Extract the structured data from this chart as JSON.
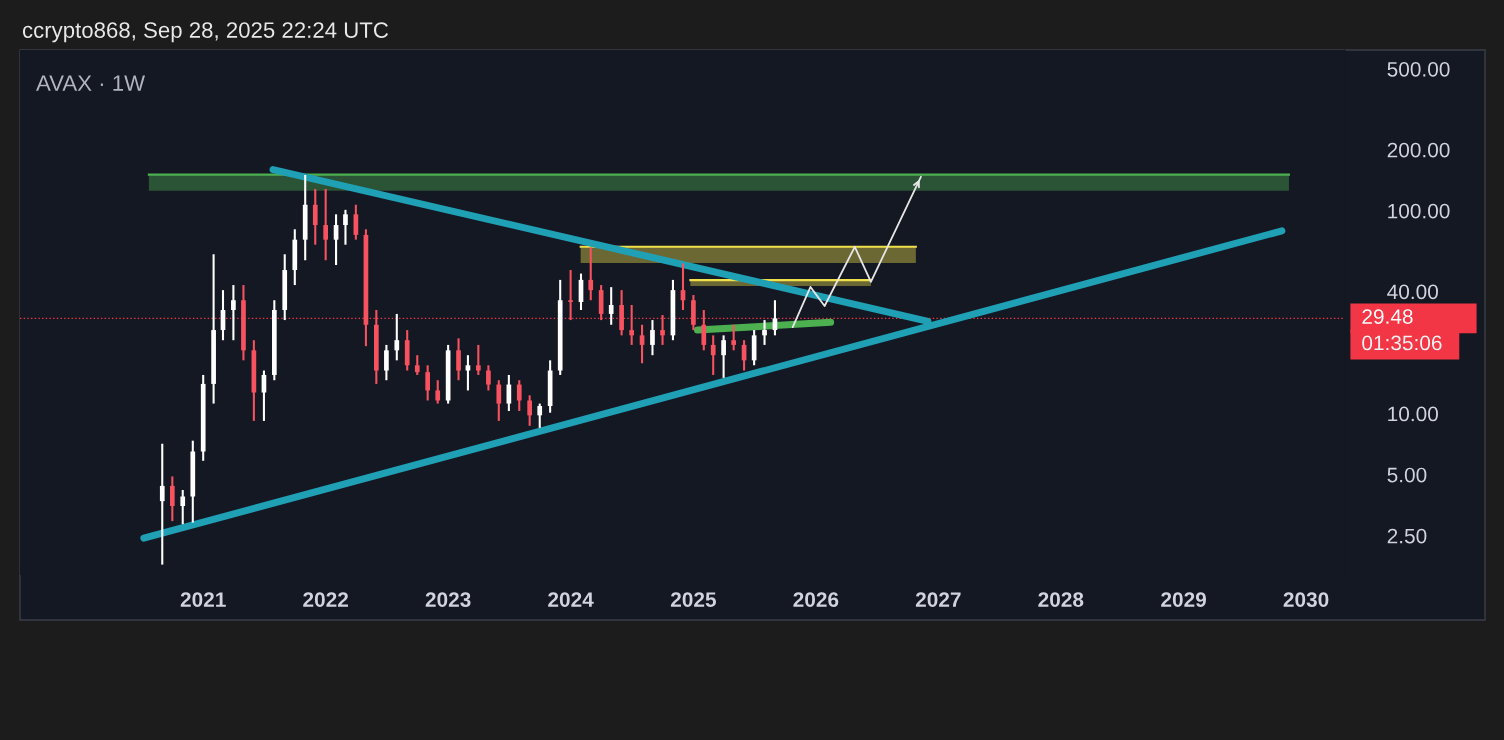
{
  "chart_data": {
    "type": "candlestick",
    "title": "ccrypto868, Sep 28, 2025 22:24 UTC",
    "subtitle": "AVAX · 1W",
    "x": [
      "2020-09",
      "2020-10",
      "2020-11",
      "2020-12",
      "2021-01",
      "2021-02",
      "2021-03",
      "2021-04",
      "2021-05",
      "2021-06",
      "2021-07",
      "2021-08",
      "2021-09",
      "2021-10",
      "2021-11",
      "2021-12",
      "2022-01",
      "2022-02",
      "2022-03",
      "2022-04",
      "2022-05",
      "2022-06",
      "2022-07",
      "2022-08",
      "2022-09",
      "2022-10",
      "2022-11",
      "2022-12",
      "2023-01",
      "2023-02",
      "2023-03",
      "2023-04",
      "2023-05",
      "2023-06",
      "2023-07",
      "2023-08",
      "2023-09",
      "2023-10",
      "2023-11",
      "2023-12",
      "2024-01",
      "2024-02",
      "2024-03",
      "2024-04",
      "2024-05",
      "2024-06",
      "2024-07",
      "2024-08",
      "2024-09",
      "2024-10",
      "2024-11",
      "2024-12",
      "2025-01",
      "2025-02",
      "2025-03",
      "2025-04",
      "2025-05",
      "2025-06",
      "2025-07",
      "2025-08",
      "2025-09"
    ],
    "ohlc": [
      [
        3.7,
        7.1,
        1.8,
        4.4
      ],
      [
        4.4,
        4.9,
        2.95,
        3.5
      ],
      [
        3.5,
        4.2,
        2.85,
        3.9
      ],
      [
        3.9,
        7.35,
        2.9,
        6.5
      ],
      [
        6.5,
        15.5,
        5.85,
        14
      ],
      [
        14,
        61,
        11.2,
        25.8
      ],
      [
        25.8,
        40.6,
        23,
        32.4
      ],
      [
        32.4,
        43,
        23,
        36.2
      ],
      [
        36.2,
        43,
        18.3,
        20.5
      ],
      [
        20.5,
        23,
        9.2,
        12.7
      ],
      [
        12.7,
        16.3,
        9.2,
        15.5
      ],
      [
        15.5,
        36.2,
        14.6,
        32.4
      ],
      [
        32.4,
        61,
        28.9,
        51
      ],
      [
        51,
        81,
        43,
        72
      ],
      [
        72,
        150,
        57,
        107
      ],
      [
        107,
        128,
        68,
        85
      ],
      [
        85,
        128,
        57,
        72
      ],
      [
        72,
        96,
        54,
        85
      ],
      [
        85,
        101,
        68,
        96
      ],
      [
        96,
        107,
        72,
        76
      ],
      [
        76,
        81,
        21.5,
        27.4
      ],
      [
        27.4,
        32.4,
        14,
        16.3
      ],
      [
        16.3,
        21.8,
        14.6,
        20.5
      ],
      [
        20.5,
        31,
        18.3,
        23
      ],
      [
        23,
        25.8,
        16.3,
        17.3
      ],
      [
        17.3,
        19.4,
        15.5,
        16
      ],
      [
        16,
        17.3,
        11.6,
        13
      ],
      [
        13,
        14.6,
        11.2,
        11.6
      ],
      [
        11.6,
        21.8,
        11.2,
        20.5
      ],
      [
        20.5,
        23.5,
        14.6,
        16.3
      ],
      [
        16.3,
        19.4,
        13,
        17.3
      ],
      [
        17.3,
        21.8,
        15.5,
        16.3
      ],
      [
        16.3,
        17.3,
        13,
        13.9
      ],
      [
        13.9,
        14.6,
        9.2,
        11.2
      ],
      [
        11.2,
        15.5,
        10.3,
        13.9
      ],
      [
        13.9,
        14.6,
        10.3,
        11.6
      ],
      [
        11.6,
        12.3,
        8.7,
        9.8
      ],
      [
        9.8,
        11.2,
        8.5,
        10.9
      ],
      [
        10.9,
        18.3,
        10.1,
        16.3
      ],
      [
        16.3,
        45.6,
        15.5,
        36.2
      ],
      [
        36.2,
        51,
        28.9,
        35.5
      ],
      [
        35.5,
        49,
        32.4,
        45.6
      ],
      [
        45.6,
        66,
        36.2,
        40.6
      ],
      [
        40.6,
        43,
        28.9,
        31
      ],
      [
        31,
        42,
        27.4,
        34.3
      ],
      [
        34.3,
        40.6,
        24.3,
        25.8
      ],
      [
        25.8,
        34.3,
        21.8,
        24.3
      ],
      [
        24.3,
        27.4,
        17.7,
        21.8
      ],
      [
        21.8,
        28.9,
        19.4,
        25.8
      ],
      [
        25.8,
        30.6,
        21.8,
        24.3
      ],
      [
        24.3,
        45.6,
        23,
        40.6
      ],
      [
        40.6,
        55,
        32.4,
        36.2
      ],
      [
        36.2,
        38.4,
        25.8,
        27.4
      ],
      [
        27.4,
        32.4,
        20.5,
        21.8
      ],
      [
        21.8,
        24.3,
        15.5,
        19.4
      ],
      [
        19.4,
        24.3,
        15,
        23
      ],
      [
        23,
        27.4,
        20.5,
        21.8
      ],
      [
        21.8,
        23,
        16.3,
        18.3
      ],
      [
        18.3,
        25.8,
        17.3,
        24.3
      ],
      [
        24.3,
        28.9,
        21.8,
        25.8
      ],
      [
        25.8,
        36.2,
        24.3,
        29.48
      ]
    ],
    "colors": [
      "#ffffff",
      "#f7525f",
      "#ffffff",
      "#ffffff",
      "#ffffff",
      "#ffffff",
      "#ffffff",
      "#ffffff",
      "#f7525f",
      "#f7525f",
      "#ffffff",
      "#ffffff",
      "#ffffff",
      "#ffffff",
      "#ffffff",
      "#f7525f",
      "#f7525f",
      "#ffffff",
      "#ffffff",
      "#f7525f",
      "#f7525f",
      "#f7525f",
      "#ffffff",
      "#ffffff",
      "#f7525f",
      "#f7525f",
      "#f7525f",
      "#f7525f",
      "#ffffff",
      "#f7525f",
      "#ffffff",
      "#f7525f",
      "#f7525f",
      "#f7525f",
      "#ffffff",
      "#f7525f",
      "#f7525f",
      "#ffffff",
      "#ffffff",
      "#ffffff",
      "#f7525f",
      "#ffffff",
      "#f7525f",
      "#f7525f",
      "#ffffff",
      "#f7525f",
      "#f7525f",
      "#f7525f",
      "#ffffff",
      "#f7525f",
      "#ffffff",
      "#f7525f",
      "#f7525f",
      "#f7525f",
      "#f7525f",
      "#ffffff",
      "#f7525f",
      "#f7525f",
      "#ffffff",
      "#ffffff",
      "#ffffff"
    ],
    "series": [
      {
        "type": "line",
        "color": "#4caf50",
        "x": [
          "2020-07-23",
          "2029-11-11"
        ],
        "values": [
          150.7,
          150.7
        ],
        "lower": [
          125.6,
          125.6
        ],
        "upper": [
          150.7,
          150.7
        ]
      },
      {
        "type": "line",
        "color": "#f0e04a",
        "x": [
          "2024-01-31",
          "2026-10-26"
        ],
        "values": [
          66.4,
          66.4
        ],
        "lower": [
          55.3,
          55.3
        ],
        "upper": [
          66.4,
          66.4
        ]
      },
      {
        "type": "line",
        "color": "#f0e04a",
        "x": [
          "2024-12-23",
          "2026-06-14"
        ],
        "values": [
          45.5,
          45.5
        ],
        "lower": [
          42.5,
          42.5
        ],
        "upper": [
          45.5,
          45.5
        ]
      },
      {
        "type": "line",
        "color": "#1fa0b5",
        "x": [
          "2021-07-28",
          "2026-12-01"
        ],
        "values": [
          159.6,
          28.5
        ]
      },
      {
        "type": "line",
        "color": "#1fa0b5",
        "x": [
          "2020-07-08",
          "2029-10-21"
        ],
        "values": [
          2.43,
          79.6
        ]
      },
      {
        "type": "line",
        "color": "#4caf50",
        "x": [
          "2025-01-13",
          "2026-02-14"
        ],
        "values": [
          25.8,
          28.2
        ]
      },
      {
        "type": "line",
        "color": "#e6e6e6",
        "x": [
          "2025-10-24",
          "2025-12-16",
          "2026-01-27",
          "2026-04-27",
          "2026-06-14",
          "2026-11-10"
        ],
        "values": [
          26.7,
          42.1,
          33.9,
          66.4,
          44.6,
          147
        ]
      }
    ],
    "log": true,
    "ylim": [
      1.6,
      620
    ],
    "yticks": [
      {
        "value": 2.5,
        "label": "2.50"
      },
      {
        "value": 5,
        "label": "5.00"
      },
      {
        "value": 10,
        "label": "10.00"
      },
      {
        "value": 40,
        "label": "40.00"
      },
      {
        "value": 100,
        "label": "100.00"
      },
      {
        "value": 200,
        "label": "200.00"
      },
      {
        "value": 500,
        "label": "500.00"
      }
    ],
    "xlim": [
      "2019-07-05",
      "2030-04-27"
    ],
    "xticks": [
      {
        "value": "2021",
        "label": "2021"
      },
      {
        "value": "2022",
        "label": "2022"
      },
      {
        "value": "2023",
        "label": "2023"
      },
      {
        "value": "2024",
        "label": "2024"
      },
      {
        "value": "2025",
        "label": "2025"
      },
      {
        "value": "2026",
        "label": "2026"
      },
      {
        "value": "2027",
        "label": "2027"
      },
      {
        "value": "2028",
        "label": "2028"
      },
      {
        "value": "2029",
        "label": "2029"
      },
      {
        "value": "2030",
        "label": "2030"
      }
    ],
    "ref_lines": [
      {
        "axis": "y",
        "value": 29.48,
        "label": "29.48",
        "color": "#f23645",
        "line_style": "dotted"
      }
    ],
    "annotations": [
      "01:35:06"
    ],
    "grid": false
  }
}
